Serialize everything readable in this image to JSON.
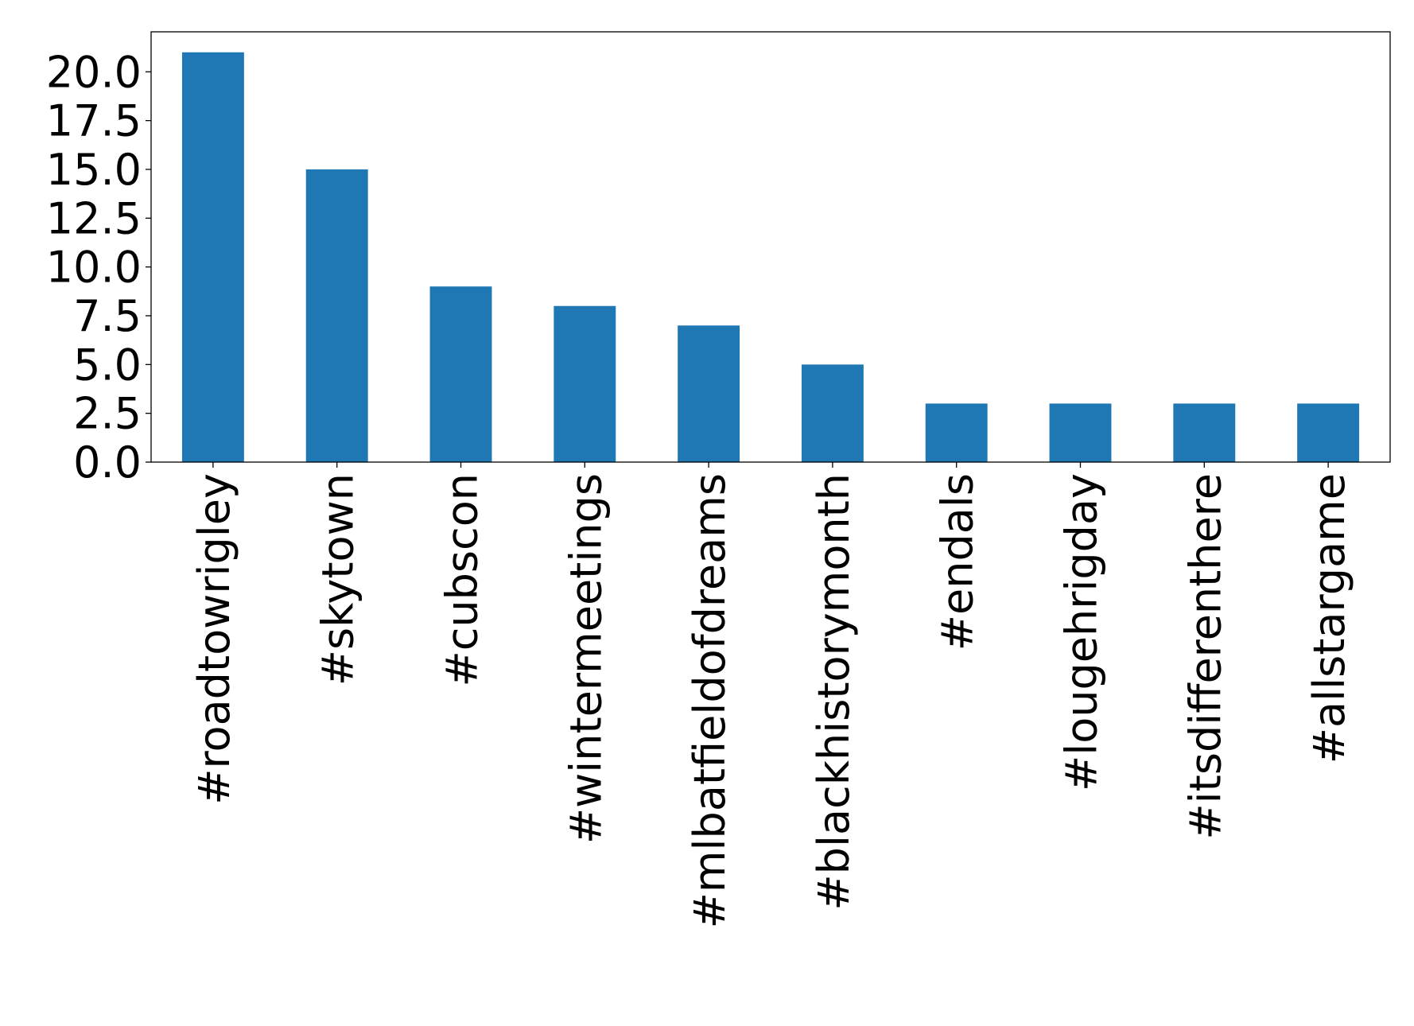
{
  "chart_data": {
    "type": "bar",
    "categories": [
      "#roadtowrigley",
      "#skytown",
      "#cubscon",
      "#wintermeetings",
      "#mlbatfieldofdreams",
      "#blackhistorymonth",
      "#endals",
      "#lougehrigday",
      "#itsdifferenthere",
      "#allstargame"
    ],
    "values": [
      21,
      15,
      9,
      8,
      7,
      5,
      3,
      3,
      3,
      3
    ],
    "ylim": [
      0,
      22.05
    ],
    "yticks": [
      0.0,
      2.5,
      5.0,
      7.5,
      10.0,
      12.5,
      15.0,
      17.5,
      20.0
    ],
    "ytick_labels": [
      "0.0",
      "2.5",
      "5.0",
      "7.5",
      "10.0",
      "12.5",
      "15.0",
      "17.5",
      "20.0"
    ],
    "bar_color": "#1f77b4",
    "grid": false,
    "legend": "none"
  }
}
